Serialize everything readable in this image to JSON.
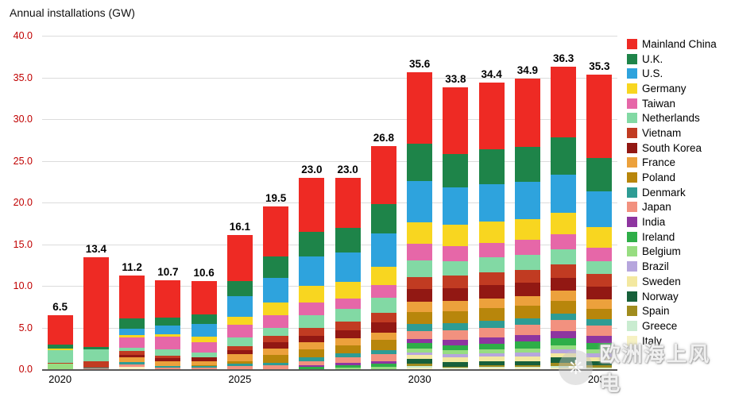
{
  "title": "Annual installations (GW)",
  "watermark": {
    "text": "欧洲海上风电"
  },
  "chart_data": {
    "type": "bar",
    "stacked": true,
    "title": "Annual installations (GW)",
    "ylabel": "Annual installations (GW)",
    "ylim": [
      0,
      40
    ],
    "ytick_step": 5,
    "grid": true,
    "legend_position": "right",
    "categories": [
      "2020",
      "2021",
      "2022",
      "2023",
      "2024",
      "2025",
      "2026",
      "2027",
      "2028",
      "2029",
      "2030",
      "2031",
      "2032",
      "2033",
      "2034",
      "2035"
    ],
    "x_visible_ticks": [
      {
        "index": 0,
        "label": "2020"
      },
      {
        "index": 5,
        "label": "2025"
      },
      {
        "index": 10,
        "label": "2030"
      },
      {
        "index": 15,
        "label": "2035"
      }
    ],
    "totals": [
      "6.5",
      "13.4",
      "11.2",
      "10.7",
      "10.6",
      "16.1",
      "19.5",
      "23.0",
      "23.0",
      "26.8",
      "35.6",
      "33.8",
      "34.4",
      "34.9",
      "36.3",
      "35.3"
    ],
    "series": [
      {
        "name": "Mainland China",
        "color": "#ee2a24",
        "values": [
          3.5,
          10.7,
          5.1,
          4.5,
          4.0,
          5.5,
          6.0,
          6.5,
          6.0,
          7.0,
          8.5,
          8.0,
          8.0,
          8.2,
          8.5,
          10.0
        ]
      },
      {
        "name": "U.K.",
        "color": "#1e8449",
        "values": [
          0.5,
          0.3,
          1.2,
          1.0,
          1.2,
          1.8,
          2.5,
          3.0,
          3.0,
          3.5,
          4.5,
          4.0,
          4.2,
          4.2,
          4.5,
          4.0
        ]
      },
      {
        "name": "U.S.",
        "color": "#2ea3dd",
        "values": [
          0,
          0,
          0.8,
          1.0,
          1.5,
          2.5,
          3.0,
          3.5,
          3.5,
          4.0,
          5.0,
          4.5,
          4.5,
          4.5,
          4.5,
          4.2
        ]
      },
      {
        "name": "Germany",
        "color": "#f8d620",
        "values": [
          0.2,
          0,
          0.3,
          0.3,
          0.7,
          1.0,
          1.5,
          2.0,
          2.0,
          2.2,
          2.5,
          2.5,
          2.5,
          2.5,
          2.6,
          2.5
        ]
      },
      {
        "name": "Taiwan",
        "color": "#e667a8",
        "values": [
          0,
          0,
          1.2,
          1.5,
          1.2,
          1.5,
          1.5,
          1.5,
          1.3,
          1.5,
          2.0,
          1.8,
          1.8,
          1.8,
          1.8,
          1.6
        ]
      },
      {
        "name": "Netherlands",
        "color": "#82d9a4",
        "values": [
          1.5,
          1.4,
          0.4,
          0.8,
          0.6,
          1.0,
          1.0,
          1.5,
          1.5,
          1.8,
          2.0,
          1.8,
          1.8,
          1.8,
          1.8,
          1.6
        ]
      },
      {
        "name": "Vietnam",
        "color": "#c13b22",
        "values": [
          0.1,
          0.8,
          0.5,
          0.3,
          0,
          0.5,
          0.8,
          1.0,
          1.0,
          1.2,
          1.5,
          1.5,
          1.5,
          1.5,
          1.6,
          1.5
        ]
      },
      {
        "name": "South Korea",
        "color": "#921813",
        "values": [
          0,
          0,
          0.3,
          0.3,
          0.4,
          0.5,
          0.7,
          0.8,
          1.0,
          1.2,
          1.5,
          1.5,
          1.6,
          1.6,
          1.6,
          1.5
        ]
      },
      {
        "name": "France",
        "color": "#eca13c",
        "values": [
          0,
          0,
          0.5,
          0.6,
          0.5,
          0.8,
          0.8,
          0.8,
          0.8,
          0.9,
          1.2,
          1.2,
          1.2,
          1.2,
          1.2,
          1.2
        ]
      },
      {
        "name": "Poland",
        "color": "#b8860b",
        "values": [
          0,
          0,
          0,
          0,
          0.1,
          0.3,
          0.9,
          1.0,
          1.0,
          1.2,
          1.5,
          1.5,
          1.5,
          1.5,
          1.5,
          1.2
        ]
      },
      {
        "name": "Denmark",
        "color": "#2e9c94",
        "values": [
          0,
          0.1,
          0.3,
          0.2,
          0.2,
          0.3,
          0.3,
          0.4,
          0.5,
          0.5,
          0.8,
          0.8,
          0.8,
          0.8,
          0.8,
          0.8
        ]
      },
      {
        "name": "Japan",
        "color": "#f2917f",
        "values": [
          0,
          0.1,
          0.3,
          0.2,
          0.2,
          0.4,
          0.5,
          0.5,
          0.6,
          0.8,
          1.0,
          1.2,
          1.2,
          1.2,
          1.3,
          1.2
        ]
      },
      {
        "name": "India",
        "color": "#8e35a0",
        "values": [
          0,
          0,
          0,
          0,
          0,
          0,
          0,
          0.2,
          0.3,
          0.3,
          0.5,
          0.6,
          0.7,
          0.8,
          0.9,
          0.9
        ]
      },
      {
        "name": "Ireland",
        "color": "#2eae48",
        "values": [
          0,
          0,
          0,
          0,
          0,
          0,
          0,
          0.3,
          0.3,
          0.4,
          0.6,
          0.6,
          0.7,
          0.8,
          0.8,
          0.7
        ]
      },
      {
        "name": "Belgium",
        "color": "#97dd81",
        "values": [
          0.7,
          0,
          0,
          0,
          0,
          0,
          0,
          0,
          0.2,
          0.3,
          0.5,
          0.5,
          0.5,
          0.5,
          0.5,
          0.5
        ]
      },
      {
        "name": "Brazil",
        "color": "#b6a6dd",
        "values": [
          0,
          0,
          0,
          0,
          0,
          0,
          0,
          0,
          0,
          0,
          0.3,
          0.4,
          0.4,
          0.5,
          0.5,
          0.5
        ]
      },
      {
        "name": "Sweden",
        "color": "#f3e8a0",
        "values": [
          0,
          0,
          0,
          0,
          0,
          0,
          0,
          0,
          0,
          0,
          0.5,
          0.5,
          0.5,
          0.5,
          0.5,
          0.4
        ]
      },
      {
        "name": "Norway",
        "color": "#17603a",
        "values": [
          0,
          0,
          0,
          0,
          0,
          0,
          0,
          0,
          0,
          0,
          0.5,
          0.6,
          0.5,
          0.5,
          0.6,
          0.5
        ]
      },
      {
        "name": "Spain",
        "color": "#a08c1e",
        "values": [
          0,
          0,
          0,
          0,
          0,
          0,
          0,
          0,
          0,
          0,
          0.3,
          0.1,
          0.2,
          0.2,
          0.4,
          0.3
        ]
      },
      {
        "name": "Greece",
        "color": "#c9ecd0",
        "values": [
          0,
          0,
          0,
          0,
          0,
          0,
          0,
          0,
          0,
          0,
          0.2,
          0.1,
          0.15,
          0.15,
          0.2,
          0.1
        ]
      },
      {
        "name": "Italy",
        "color": "#f6f1c3",
        "values": [
          0,
          0,
          0.3,
          0,
          0,
          0,
          0,
          0,
          0,
          0,
          0.2,
          0.1,
          0.15,
          0.15,
          0.2,
          0.1
        ]
      }
    ]
  }
}
